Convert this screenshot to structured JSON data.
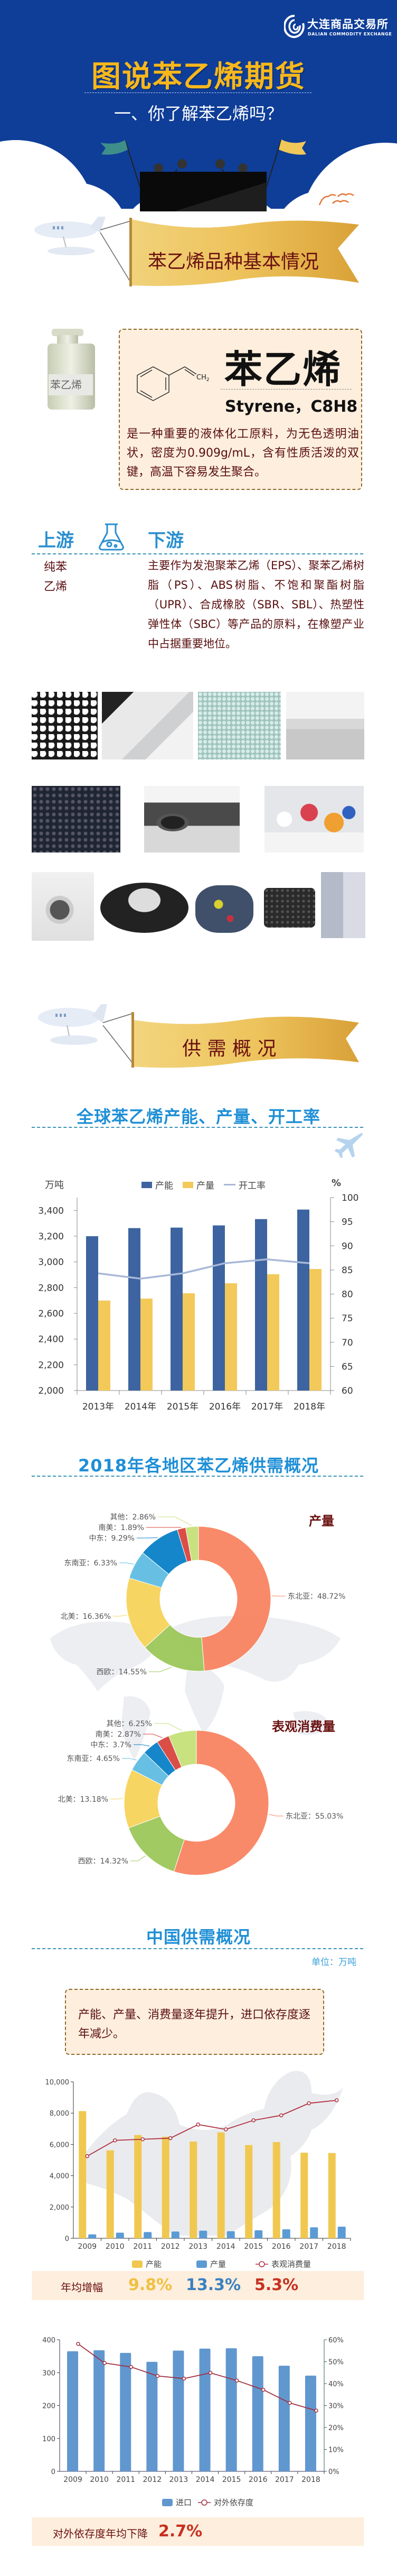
{
  "header": {
    "logo_cn": "大连商品交易所",
    "logo_en": "DALIAN COMMODITY EXCHANGE",
    "title": "图说苯乙烯期货",
    "subtitle": "一、你了解苯乙烯吗？"
  },
  "basics": {
    "banner": "苯乙烯品种基本情况",
    "bottle_label": "苯乙烯",
    "structure_group": "CH",
    "structure_sub": "2",
    "name_cn": "苯乙烯",
    "name_en": "Styrene，C8H8",
    "description": "是一种重要的液体化工原料，为无色透明油状，密度为0.909g/mL，含有性质活泼的双键，高温下容易发生聚合。"
  },
  "chain": {
    "upstream_label": "上游",
    "downstream_label": "下游",
    "upstream_items": [
      "纯苯",
      "乙烯"
    ],
    "downstream_text": "主要作为发泡聚苯乙烯（EPS）、聚苯乙烯树脂（PS）、ABS树脂、不饱和聚酯树脂（UPR）、合成橡胶（SBR、SBL）、热塑性弹性体（SBC）等产品的原料，在橡塑产业中占据重要地位。"
  },
  "supply_demand": {
    "banner": "供 需 概 况"
  },
  "china": {
    "title": "中国供需概况",
    "unit": "单位：万吨",
    "summary": "产能、产量、消费量逐年提升，进口依存度逐年减少。",
    "growth": {
      "label": "年均增幅",
      "values": [
        "9.8%",
        "13.3%",
        "5.3%"
      ],
      "colors": [
        "#f0c040",
        "#3a80c0",
        "#c83020"
      ]
    },
    "dependency": {
      "label": "对外依存度年均下降",
      "value": "2.7%"
    }
  },
  "colors": {
    "header_bg": "#0f3e98",
    "title_yellow": "#f8b71b",
    "section_blue": "#1f8fd6",
    "text_dark_red": "#5a0f10",
    "box_bg": "#fdeedd"
  },
  "chart_data": [
    {
      "type": "bar",
      "title": "全球苯乙烯产能、产量、开工率",
      "ylabel": "万吨",
      "y2label": "%",
      "categories": [
        "2013年",
        "2014年",
        "2015年",
        "2016年",
        "2017年",
        "2018年"
      ],
      "series": [
        {
          "name": "产能",
          "type": "bar",
          "axis": "left",
          "color": "#3d64a0",
          "values": [
            3200,
            3263,
            3267,
            3284,
            3333,
            3407
          ]
        },
        {
          "name": "产量",
          "type": "bar",
          "axis": "left",
          "color": "#f3c95a",
          "values": [
            2700,
            2715,
            2756,
            2834,
            2904,
            2945
          ]
        },
        {
          "name": "开工率",
          "type": "line",
          "axis": "right",
          "color": "#a8b8d8",
          "values": [
            84.3,
            83.2,
            84.3,
            86.4,
            87.2,
            86.4
          ]
        }
      ],
      "ylim": [
        2000,
        3500
      ],
      "y2lim": [
        60,
        100
      ],
      "yticks": [
        "2,000",
        "2,200",
        "2,400",
        "2,600",
        "2,800",
        "3,000",
        "3,200",
        "3,400"
      ],
      "y2ticks": [
        "60",
        "65",
        "70",
        "75",
        "80",
        "85",
        "90",
        "95",
        "100"
      ],
      "legend": "top",
      "grid": false
    },
    {
      "type": "pie",
      "title": "2018年各地区苯乙烯供需概况",
      "subtitle": "产量",
      "labels": [
        "东北亚",
        "西欧",
        "北美",
        "东南亚",
        "中东",
        "南美",
        "其他"
      ],
      "values": [
        48.72,
        14.55,
        16.36,
        6.33,
        9.29,
        1.89,
        2.86
      ],
      "value_labels": [
        "东北亚：48.72%",
        "西欧：14.55%",
        "北美：16.36%",
        "东南亚：6.33%",
        "中东：9.29%",
        "南美：1.89%",
        "其他：2.86%"
      ],
      "colors": [
        "#f98461",
        "#9cc85a",
        "#f7d35a",
        "#5fbde3",
        "#0a80c8",
        "#d9453e",
        "#c6e17a"
      ],
      "donut": true
    },
    {
      "type": "pie",
      "subtitle": "表观消费量",
      "labels": [
        "东北亚",
        "西欧",
        "北美",
        "东南亚",
        "中东",
        "南美",
        "其他"
      ],
      "values": [
        55.03,
        14.32,
        13.18,
        4.65,
        3.7,
        2.87,
        6.25
      ],
      "value_labels": [
        "东北亚：55.03%",
        "西欧：14.32%",
        "北美：13.18%",
        "东南亚：4.65%",
        "中东：3.7%",
        "南美：2.87%",
        "其他：6.25%"
      ],
      "colors": [
        "#f98461",
        "#9cc85a",
        "#f7d35a",
        "#5fbde3",
        "#0a80c8",
        "#d9453e",
        "#c6e17a"
      ],
      "donut": true
    },
    {
      "type": "bar",
      "categories": [
        "2009",
        "2010",
        "2011",
        "2012",
        "2013",
        "2014",
        "2015",
        "2016",
        "2017",
        "2018"
      ],
      "series": [
        {
          "name": "产能",
          "type": "bar",
          "color": "#f0c850",
          "values": [
            8130,
            5620,
            6600,
            6490,
            6180,
            6770,
            5960,
            6150,
            5470,
            5450
          ]
        },
        {
          "name": "产量",
          "type": "bar",
          "color": "#5b9bd5",
          "values": [
            250,
            360,
            395,
            430,
            485,
            450,
            510,
            575,
            700,
            745
          ]
        },
        {
          "name": "表观消费量",
          "type": "line",
          "color": "#b03040",
          "values": [
            5250,
            6260,
            6330,
            6400,
            7270,
            6960,
            7540,
            7860,
            8630,
            8820
          ]
        }
      ],
      "ylim": [
        0,
        10000
      ],
      "yticks": [
        "0",
        "2,000",
        "4,000",
        "6,000",
        "8,000",
        "10,000"
      ],
      "legend": "bottom",
      "grid": false
    },
    {
      "type": "bar",
      "categories": [
        "2009",
        "2010",
        "2011",
        "2012",
        "2013",
        "2014",
        "2015",
        "2016",
        "2017",
        "2018"
      ],
      "series": [
        {
          "name": "进口",
          "type": "bar",
          "axis": "left",
          "color": "#6197cf",
          "values": [
            365,
            368,
            360,
            333,
            367,
            373,
            374,
            350,
            321,
            291
          ]
        },
        {
          "name": "对外依存度",
          "type": "line",
          "axis": "right",
          "color": "#a03040",
          "values": [
            58.1,
            49.4,
            47.6,
            43.5,
            42.3,
            44.9,
            41.4,
            37.2,
            31.2,
            27.7
          ]
        }
      ],
      "ylim": [
        0,
        400
      ],
      "y2lim": [
        0,
        60
      ],
      "yticks": [
        "0",
        "100",
        "200",
        "300",
        "400"
      ],
      "y2ticks": [
        "0%",
        "10%",
        "20%",
        "30%",
        "40%",
        "50%",
        "60%"
      ],
      "legend": "bottom",
      "grid": false
    }
  ]
}
